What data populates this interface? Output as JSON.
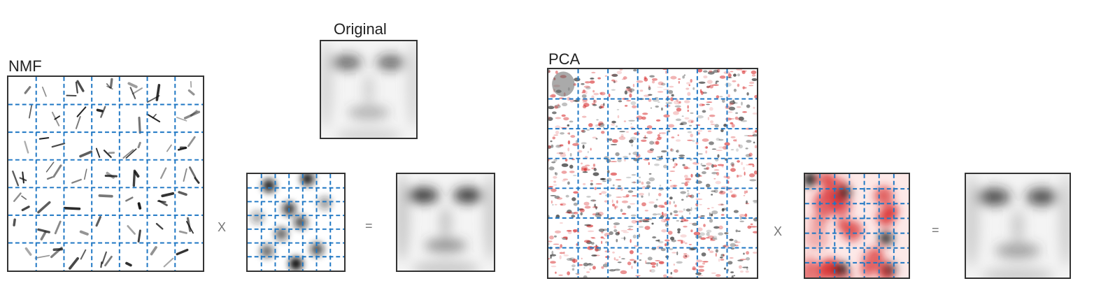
{
  "labels": {
    "nmf": "NMF",
    "original": "Original",
    "pca": "PCA"
  },
  "operators": {
    "times": "X",
    "equals": "="
  },
  "panels": {
    "nmf_basis": {
      "kind": "basis-images",
      "method": "NMF",
      "rows": 7,
      "cols": 7,
      "colormap": "gray"
    },
    "nmf_encoding": {
      "kind": "encoding",
      "method": "NMF",
      "rows": 7,
      "cols": 7,
      "colormap": "gray"
    },
    "nmf_reconstruction": {
      "kind": "face",
      "method": "NMF"
    },
    "original_face": {
      "kind": "face",
      "method": "original"
    },
    "pca_basis": {
      "kind": "basis-images",
      "method": "PCA",
      "rows": 7,
      "cols": 7,
      "colormap": "red-black"
    },
    "pca_encoding": {
      "kind": "encoding",
      "method": "PCA",
      "rows": 7,
      "cols": 7,
      "colormap": "red-black"
    },
    "pca_reconstruction": {
      "kind": "face",
      "method": "PCA"
    }
  },
  "colors": {
    "grid_line": "#1f77c4",
    "border": "#333333",
    "positive": "#111111",
    "negative": "#d62728"
  }
}
